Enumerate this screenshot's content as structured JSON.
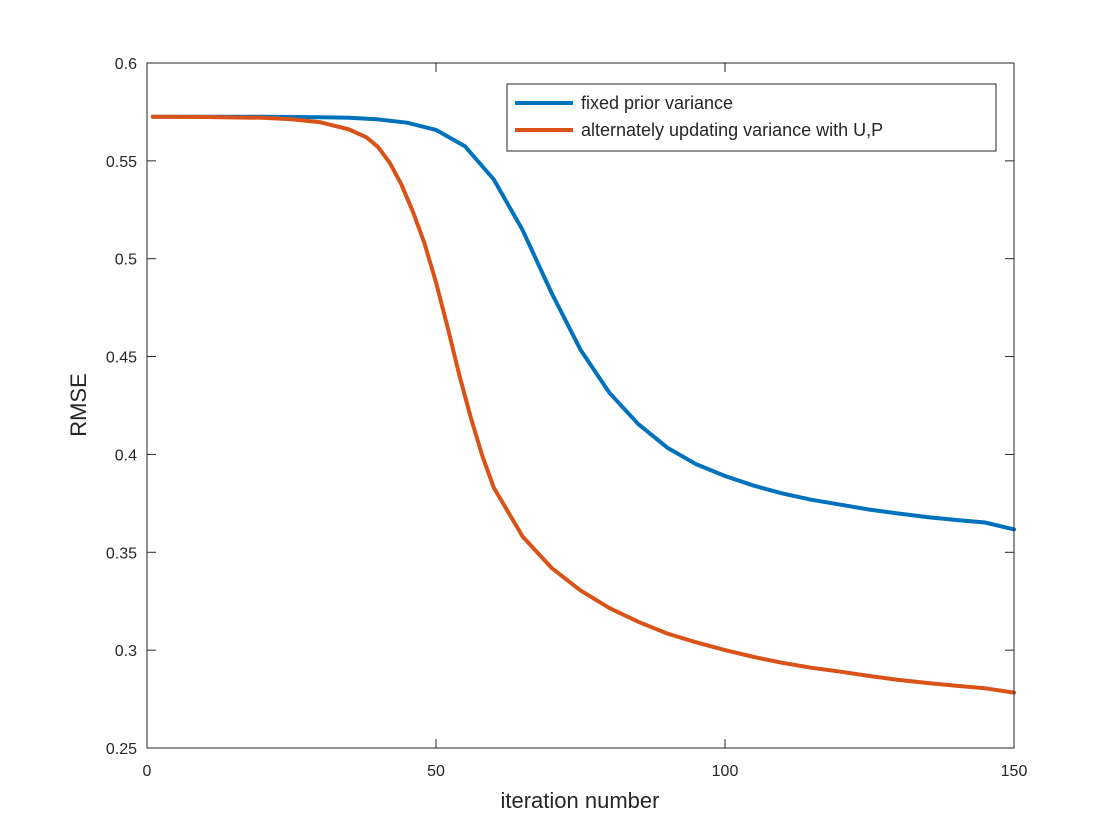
{
  "chart_data": {
    "type": "line",
    "title": "",
    "xlabel": "iteration number",
    "ylabel": "RMSE",
    "xlim": [
      0,
      150
    ],
    "ylim": [
      0.25,
      0.6
    ],
    "xticks": [
      0,
      50,
      100,
      150
    ],
    "xtick_labels": [
      "0",
      "50",
      "100",
      "150"
    ],
    "yticks": [
      0.25,
      0.3,
      0.35,
      0.4,
      0.45,
      0.5,
      0.55,
      0.6
    ],
    "ytick_labels": [
      "0.25",
      "0.3",
      "0.35",
      "0.4",
      "0.45",
      "0.5",
      "0.55",
      "0.6"
    ],
    "grid": false,
    "legend_position": "top-right",
    "series": [
      {
        "name": "fixed prior variance",
        "color": "#0072BD",
        "x": [
          1,
          10,
          20,
          30,
          35,
          40,
          45,
          50,
          55,
          60,
          65,
          70,
          75,
          80,
          85,
          90,
          95,
          100,
          105,
          110,
          115,
          120,
          125,
          130,
          135,
          140,
          145,
          150
        ],
        "y": [
          0.5725,
          0.5725,
          0.5725,
          0.5723,
          0.572,
          0.5712,
          0.5695,
          0.5658,
          0.5575,
          0.5405,
          0.5145,
          0.4825,
          0.4535,
          0.4315,
          0.4155,
          0.4035,
          0.395,
          0.389,
          0.384,
          0.38,
          0.3768,
          0.3743,
          0.3718,
          0.3698,
          0.368,
          0.3665,
          0.3652,
          0.3617
        ]
      },
      {
        "name": "alternately updating variance with U,P",
        "color": "#D95319",
        "x": [
          1,
          10,
          20,
          25,
          30,
          35,
          38,
          40,
          42,
          44,
          46,
          48,
          50,
          52,
          54,
          56,
          58,
          60,
          65,
          70,
          75,
          80,
          85,
          90,
          95,
          100,
          105,
          110,
          115,
          120,
          125,
          130,
          135,
          140,
          145,
          150
        ],
        "y": [
          0.5725,
          0.5724,
          0.572,
          0.5713,
          0.5697,
          0.566,
          0.562,
          0.557,
          0.549,
          0.538,
          0.524,
          0.508,
          0.488,
          0.465,
          0.441,
          0.419,
          0.3995,
          0.383,
          0.358,
          0.342,
          0.3305,
          0.3215,
          0.3145,
          0.3085,
          0.304,
          0.3,
          0.2965,
          0.2935,
          0.291,
          0.289,
          0.2868,
          0.2848,
          0.2832,
          0.2818,
          0.2805,
          0.2783
        ]
      }
    ]
  }
}
